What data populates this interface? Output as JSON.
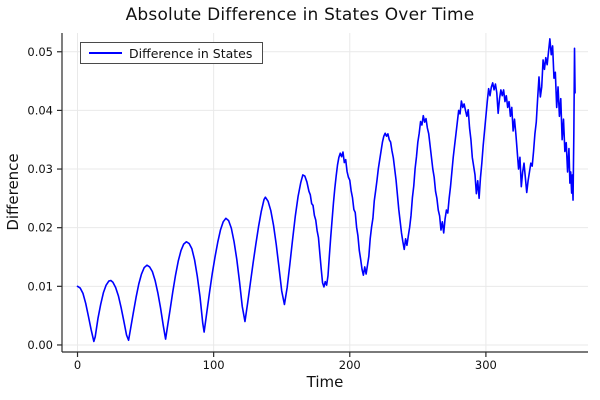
{
  "chart_data": {
    "type": "line",
    "title": "Absolute Difference in States Over Time",
    "xlabel": "Time",
    "ylabel": "Difference",
    "grid": true,
    "legend_position": "top-left",
    "xlim": [
      -11.4,
      375
    ],
    "ylim": [
      -0.0012,
      0.0532
    ],
    "xticks": {
      "values": [
        0,
        100,
        200,
        300
      ],
      "labels": [
        "0",
        "100",
        "200",
        "300"
      ]
    },
    "yticks": {
      "values": [
        0,
        0.01,
        0.02,
        0.03,
        0.04,
        0.05
      ],
      "labels": [
        "0.00",
        "0.01",
        "0.02",
        "0.03",
        "0.04",
        "0.05"
      ]
    },
    "colors": {
      "line": "#0000ff",
      "grid": "#e9e9e9",
      "axis": "#2a2a2a",
      "text": "#111111",
      "legend_border": "#4a4a4a",
      "background": "#ffffff"
    },
    "series": [
      {
        "name": "Difference in States",
        "color": "#0000ff",
        "points": [
          [
            0,
            0.01
          ],
          [
            2,
            0.0097
          ],
          [
            4,
            0.0088
          ],
          [
            6,
            0.0071
          ],
          [
            8,
            0.0049
          ],
          [
            10,
            0.0026
          ],
          [
            12,
            0.0006
          ],
          [
            13,
            0.0014
          ],
          [
            15,
            0.0045
          ],
          [
            17,
            0.0069
          ],
          [
            19,
            0.0089
          ],
          [
            21,
            0.0102
          ],
          [
            23,
            0.0109
          ],
          [
            24.5,
            0.011
          ],
          [
            26,
            0.0107
          ],
          [
            28,
            0.0098
          ],
          [
            30,
            0.0084
          ],
          [
            32,
            0.0064
          ],
          [
            34,
            0.0041
          ],
          [
            36,
            0.0017
          ],
          [
            37.5,
            0.0008
          ],
          [
            39,
            0.0028
          ],
          [
            41,
            0.0055
          ],
          [
            43,
            0.0081
          ],
          [
            45,
            0.0104
          ],
          [
            47,
            0.0121
          ],
          [
            49,
            0.0132
          ],
          [
            51,
            0.0136
          ],
          [
            53,
            0.0133
          ],
          [
            55,
            0.0125
          ],
          [
            57,
            0.011
          ],
          [
            59,
            0.0089
          ],
          [
            61,
            0.0063
          ],
          [
            63,
            0.0033
          ],
          [
            64.7,
            0.001
          ],
          [
            66,
            0.003
          ],
          [
            68,
            0.006
          ],
          [
            70,
            0.0091
          ],
          [
            72,
            0.0119
          ],
          [
            74,
            0.0143
          ],
          [
            76,
            0.0161
          ],
          [
            78,
            0.0172
          ],
          [
            80,
            0.0176
          ],
          [
            82,
            0.0173
          ],
          [
            84,
            0.0164
          ],
          [
            86,
            0.0145
          ],
          [
            88,
            0.0117
          ],
          [
            90,
            0.0082
          ],
          [
            92,
            0.0037
          ],
          [
            93,
            0.0022
          ],
          [
            95,
            0.0056
          ],
          [
            97,
            0.009
          ],
          [
            99,
            0.0122
          ],
          [
            101,
            0.015
          ],
          [
            103,
            0.0175
          ],
          [
            105,
            0.0196
          ],
          [
            107,
            0.021
          ],
          [
            109,
            0.0216
          ],
          [
            111,
            0.0212
          ],
          [
            113,
            0.0199
          ],
          [
            115,
            0.0176
          ],
          [
            117,
            0.0146
          ],
          [
            119,
            0.0108
          ],
          [
            121,
            0.0066
          ],
          [
            123,
            0.004
          ],
          [
            125,
            0.0072
          ],
          [
            127,
            0.0106
          ],
          [
            129,
            0.014
          ],
          [
            131,
            0.0172
          ],
          [
            133,
            0.0202
          ],
          [
            135,
            0.0228
          ],
          [
            137,
            0.0248
          ],
          [
            138,
            0.0252
          ],
          [
            140,
            0.0245
          ],
          [
            142,
            0.0229
          ],
          [
            144,
            0.0204
          ],
          [
            146,
            0.0171
          ],
          [
            148,
            0.0132
          ],
          [
            150,
            0.0092
          ],
          [
            152,
            0.0069
          ],
          [
            154,
            0.0098
          ],
          [
            156,
            0.0138
          ],
          [
            158,
            0.018
          ],
          [
            160,
            0.022
          ],
          [
            162,
            0.0253
          ],
          [
            164,
            0.0277
          ],
          [
            165.5,
            0.029
          ],
          [
            167,
            0.0288
          ],
          [
            168.5,
            0.0278
          ],
          [
            170,
            0.0262
          ],
          [
            171,
            0.0256
          ],
          [
            172,
            0.0241
          ],
          [
            173,
            0.0238
          ],
          [
            174,
            0.0221
          ],
          [
            175,
            0.0213
          ],
          [
            176,
            0.0195
          ],
          [
            177,
            0.0183
          ],
          [
            178,
            0.0156
          ],
          [
            179,
            0.013
          ],
          [
            180,
            0.0106
          ],
          [
            181,
            0.0099
          ],
          [
            182,
            0.0108
          ],
          [
            183,
            0.0102
          ],
          [
            184,
            0.0118
          ],
          [
            185,
            0.0152
          ],
          [
            186,
            0.0184
          ],
          [
            187,
            0.0213
          ],
          [
            188,
            0.0242
          ],
          [
            189,
            0.0267
          ],
          [
            190,
            0.0288
          ],
          [
            191,
            0.0307
          ],
          [
            192,
            0.032
          ],
          [
            193,
            0.0327
          ],
          [
            194,
            0.0321
          ],
          [
            195,
            0.0329
          ],
          [
            196,
            0.0311
          ],
          [
            197,
            0.0316
          ],
          [
            198,
            0.0296
          ],
          [
            199,
            0.0286
          ],
          [
            200,
            0.0281
          ],
          [
            201,
            0.0263
          ],
          [
            202,
            0.0251
          ],
          [
            203,
            0.0231
          ],
          [
            204,
            0.0226
          ],
          [
            205,
            0.0201
          ],
          [
            206,
            0.0186
          ],
          [
            207,
            0.0161
          ],
          [
            208,
            0.0146
          ],
          [
            209,
            0.0129
          ],
          [
            210,
            0.0119
          ],
          [
            211,
            0.0133
          ],
          [
            212,
            0.0121
          ],
          [
            213,
            0.0136
          ],
          [
            214,
            0.0151
          ],
          [
            215,
            0.0181
          ],
          [
            216,
            0.0201
          ],
          [
            217,
            0.0216
          ],
          [
            218,
            0.0246
          ],
          [
            219,
            0.0263
          ],
          [
            220,
            0.0281
          ],
          [
            221,
            0.0301
          ],
          [
            222,
            0.0316
          ],
          [
            223,
            0.0331
          ],
          [
            224,
            0.0346
          ],
          [
            225,
            0.0356
          ],
          [
            226,
            0.0361
          ],
          [
            227,
            0.0356
          ],
          [
            228,
            0.036
          ],
          [
            229,
            0.035
          ],
          [
            230,
            0.0346
          ],
          [
            231,
            0.0331
          ],
          [
            232,
            0.0319
          ],
          [
            233,
            0.03
          ],
          [
            234,
            0.0281
          ],
          [
            235,
            0.0256
          ],
          [
            236,
            0.0231
          ],
          [
            237,
            0.0211
          ],
          [
            238,
            0.0191
          ],
          [
            239,
            0.0176
          ],
          [
            240,
            0.0163
          ],
          [
            241,
            0.0181
          ],
          [
            242,
            0.017
          ],
          [
            243,
            0.0186
          ],
          [
            244,
            0.0201
          ],
          [
            245,
            0.0221
          ],
          [
            246,
            0.0251
          ],
          [
            247,
            0.0271
          ],
          [
            248,
            0.0301
          ],
          [
            249,
            0.0321
          ],
          [
            250,
            0.0346
          ],
          [
            251,
            0.0361
          ],
          [
            252,
            0.0381
          ],
          [
            253,
            0.0375
          ],
          [
            254,
            0.0391
          ],
          [
            255,
            0.038
          ],
          [
            256,
            0.0386
          ],
          [
            257,
            0.037
          ],
          [
            258,
            0.036
          ],
          [
            259,
            0.034
          ],
          [
            260,
            0.032
          ],
          [
            261,
            0.03
          ],
          [
            262,
            0.0286
          ],
          [
            263,
            0.0262
          ],
          [
            264,
            0.025
          ],
          [
            265,
            0.023
          ],
          [
            266,
            0.022
          ],
          [
            267,
            0.0196
          ],
          [
            268,
            0.021
          ],
          [
            269,
            0.0191
          ],
          [
            270,
            0.0215
          ],
          [
            271,
            0.023
          ],
          [
            272,
            0.0225
          ],
          [
            273,
            0.025
          ],
          [
            274,
            0.027
          ],
          [
            275,
            0.0295
          ],
          [
            276,
            0.032
          ],
          [
            277,
            0.034
          ],
          [
            278,
            0.036
          ],
          [
            279,
            0.038
          ],
          [
            280,
            0.04
          ],
          [
            281,
            0.0394
          ],
          [
            282,
            0.0416
          ],
          [
            283,
            0.0405
          ],
          [
            284,
            0.0411
          ],
          [
            285,
            0.04
          ],
          [
            286,
            0.039
          ],
          [
            287,
            0.0401
          ],
          [
            288,
            0.037
          ],
          [
            289,
            0.035
          ],
          [
            290,
            0.032
          ],
          [
            291,
            0.0305
          ],
          [
            292,
            0.029
          ],
          [
            293,
            0.0258
          ],
          [
            294,
            0.028
          ],
          [
            295,
            0.025
          ],
          [
            296,
            0.0285
          ],
          [
            297,
            0.031
          ],
          [
            298,
            0.034
          ],
          [
            299,
            0.0365
          ],
          [
            300,
            0.039
          ],
          [
            301,
            0.0415
          ],
          [
            302,
            0.0437
          ],
          [
            303,
            0.0425
          ],
          [
            304,
            0.044
          ],
          [
            305,
            0.0447
          ],
          [
            306,
            0.0435
          ],
          [
            307,
            0.0445
          ],
          [
            308,
            0.043
          ],
          [
            309,
            0.0395
          ],
          [
            310,
            0.042
          ],
          [
            311,
            0.0435
          ],
          [
            312,
            0.0425
          ],
          [
            313,
            0.0435
          ],
          [
            314,
            0.0415
          ],
          [
            315,
            0.0425
          ],
          [
            316,
            0.0405
          ],
          [
            317,
            0.0415
          ],
          [
            318,
            0.039
          ],
          [
            319,
            0.0405
          ],
          [
            320,
            0.0365
          ],
          [
            321,
            0.0385
          ],
          [
            322,
            0.036
          ],
          [
            323,
            0.033
          ],
          [
            324,
            0.03
          ],
          [
            325,
            0.032
          ],
          [
            326,
            0.027
          ],
          [
            327,
            0.0295
          ],
          [
            328,
            0.031
          ],
          [
            329,
            0.0285
          ],
          [
            330,
            0.026
          ],
          [
            331,
            0.028
          ],
          [
            332,
            0.0295
          ],
          [
            333,
            0.031
          ],
          [
            334,
            0.0305
          ],
          [
            335,
            0.033
          ],
          [
            336,
            0.036
          ],
          [
            337,
            0.038
          ],
          [
            338,
            0.042
          ],
          [
            339,
            0.0457
          ],
          [
            340,
            0.0423
          ],
          [
            341,
            0.044
          ],
          [
            342,
            0.0486
          ],
          [
            343,
            0.047
          ],
          [
            344,
            0.049
          ],
          [
            345,
            0.0478
          ],
          [
            346,
            0.05
          ],
          [
            347,
            0.0522
          ],
          [
            348,
            0.0495
          ],
          [
            349,
            0.051
          ],
          [
            350,
            0.0455
          ],
          [
            351,
            0.0465
          ],
          [
            352,
            0.0405
          ],
          [
            353,
            0.044
          ],
          [
            354,
            0.039
          ],
          [
            355,
            0.042
          ],
          [
            356,
            0.035
          ],
          [
            357,
            0.0385
          ],
          [
            358,
            0.033
          ],
          [
            359,
            0.0345
          ],
          [
            360,
            0.0295
          ],
          [
            361,
            0.0335
          ],
          [
            361.7,
            0.0276
          ],
          [
            362.3,
            0.0295
          ],
          [
            363,
            0.0259
          ],
          [
            363.5,
            0.029
          ],
          [
            364,
            0.0247
          ],
          [
            364.6,
            0.036
          ],
          [
            365.1,
            0.0506
          ],
          [
            365.5,
            0.043
          ]
        ]
      }
    ]
  }
}
